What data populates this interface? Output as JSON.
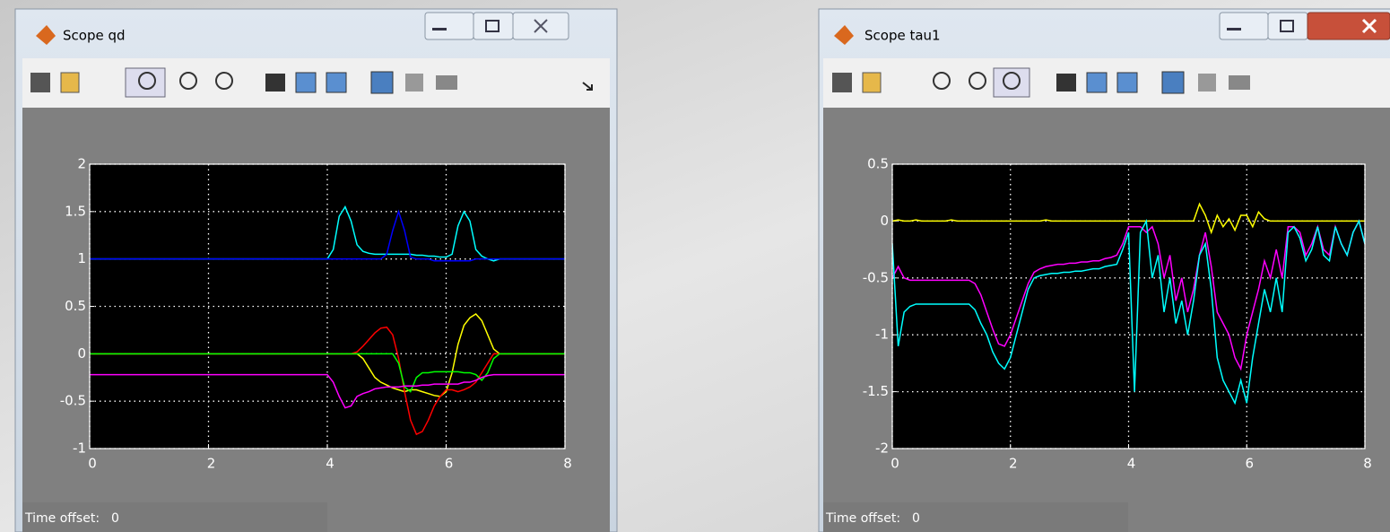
{
  "windows": [
    {
      "title": "Scope qd",
      "time_offset_label": "Time offset:",
      "time_offset": 0
    },
    {
      "title": "Scope tau1",
      "time_offset_label": "Time offset:",
      "time_offset": 0
    }
  ],
  "chart_data": [
    {
      "type": "line",
      "x": [
        0,
        0.5,
        1,
        1.5,
        2,
        2.5,
        3,
        3.5,
        4,
        4.1,
        4.2,
        4.3,
        4.4,
        4.5,
        4.6,
        4.7,
        4.8,
        4.9,
        5,
        5.1,
        5.2,
        5.3,
        5.4,
        5.5,
        5.6,
        5.7,
        5.8,
        5.9,
        6,
        6.1,
        6.2,
        6.3,
        6.4,
        6.5,
        6.6,
        6.7,
        6.8,
        6.9,
        7,
        7.5,
        8
      ],
      "series": [
        {
          "color": "#00ffff",
          "values": [
            1,
            1,
            1,
            1,
            1,
            1,
            1,
            1,
            1,
            1.1,
            1.45,
            1.55,
            1.4,
            1.15,
            1.08,
            1.06,
            1.05,
            1.05,
            1.05,
            1.05,
            1.05,
            1.05,
            1.05,
            1.04,
            1.04,
            1.03,
            1.03,
            1.02,
            1.02,
            1.05,
            1.35,
            1.5,
            1.4,
            1.1,
            1.03,
            1.0,
            0.98,
            1,
            1,
            1,
            1
          ]
        },
        {
          "color": "#0000ff",
          "values": [
            1,
            1,
            1,
            1,
            1,
            1,
            1,
            1,
            1,
            1,
            1,
            1,
            1,
            1,
            1,
            1,
            1,
            1,
            1.05,
            1.3,
            1.5,
            1.3,
            1.02,
            1,
            1,
            1,
            0.98,
            0.98,
            0.98,
            0.98,
            0.98,
            0.98,
            0.98,
            1,
            1,
            1,
            1,
            1,
            1,
            1,
            1
          ]
        },
        {
          "color": "#ffff00",
          "values": [
            0,
            0,
            0,
            0,
            0,
            0,
            0,
            0,
            0,
            0,
            0,
            0,
            0,
            0,
            -0.05,
            -0.15,
            -0.25,
            -0.3,
            -0.33,
            -0.36,
            -0.38,
            -0.4,
            -0.38,
            -0.38,
            -0.4,
            -0.42,
            -0.44,
            -0.45,
            -0.4,
            -0.2,
            0.1,
            0.3,
            0.38,
            0.42,
            0.35,
            0.2,
            0.05,
            0,
            0,
            0,
            0
          ]
        },
        {
          "color": "#ff0000",
          "values": [
            0,
            0,
            0,
            0,
            0,
            0,
            0,
            0,
            0,
            0,
            0,
            0,
            0,
            0.02,
            0.08,
            0.15,
            0.22,
            0.27,
            0.28,
            0.2,
            -0.05,
            -0.4,
            -0.7,
            -0.85,
            -0.82,
            -0.7,
            -0.55,
            -0.45,
            -0.38,
            -0.38,
            -0.4,
            -0.38,
            -0.35,
            -0.3,
            -0.2,
            -0.1,
            0,
            0,
            0,
            0,
            0
          ]
        },
        {
          "color": "#00ff00",
          "values": [
            0,
            0,
            0,
            0,
            0,
            0,
            0,
            0,
            0,
            0,
            0,
            0,
            0,
            0,
            0,
            0,
            0,
            0,
            0,
            0,
            -0.1,
            -0.35,
            -0.4,
            -0.25,
            -0.2,
            -0.2,
            -0.19,
            -0.19,
            -0.19,
            -0.19,
            -0.19,
            -0.2,
            -0.2,
            -0.22,
            -0.28,
            -0.2,
            -0.05,
            0,
            0,
            0,
            0
          ]
        },
        {
          "color": "#ff00ff",
          "values": [
            -0.22,
            -0.22,
            -0.22,
            -0.22,
            -0.22,
            -0.22,
            -0.22,
            -0.22,
            -0.22,
            -0.3,
            -0.45,
            -0.57,
            -0.55,
            -0.45,
            -0.42,
            -0.4,
            -0.37,
            -0.36,
            -0.35,
            -0.35,
            -0.35,
            -0.34,
            -0.34,
            -0.34,
            -0.33,
            -0.33,
            -0.32,
            -0.32,
            -0.32,
            -0.32,
            -0.32,
            -0.3,
            -0.3,
            -0.28,
            -0.25,
            -0.23,
            -0.22,
            -0.22,
            -0.22,
            -0.22,
            -0.22
          ]
        }
      ],
      "xlim": [
        0,
        8
      ],
      "ylim": [
        -1,
        2
      ],
      "xticks": [
        0,
        2,
        4,
        6,
        8
      ],
      "yticks": [
        -1,
        -0.5,
        0,
        0.5,
        1,
        1.5,
        2
      ],
      "grid": true
    },
    {
      "type": "line",
      "x": [
        0,
        0.1,
        0.2,
        0.3,
        0.4,
        0.5,
        0.6,
        0.7,
        0.8,
        0.9,
        1,
        1.1,
        1.2,
        1.3,
        1.4,
        1.5,
        1.6,
        1.7,
        1.8,
        1.9,
        2,
        2.1,
        2.2,
        2.3,
        2.4,
        2.5,
        2.6,
        2.7,
        2.8,
        2.9,
        3,
        3.1,
        3.2,
        3.3,
        3.4,
        3.5,
        3.6,
        3.7,
        3.8,
        3.9,
        4,
        4.1,
        4.2,
        4.3,
        4.4,
        4.5,
        4.6,
        4.7,
        4.8,
        4.9,
        5,
        5.1,
        5.2,
        5.3,
        5.4,
        5.5,
        5.6,
        5.7,
        5.8,
        5.9,
        6,
        6.1,
        6.2,
        6.3,
        6.4,
        6.5,
        6.6,
        6.7,
        6.8,
        6.9,
        7,
        7.1,
        7.2,
        7.3,
        7.4,
        7.5,
        7.6,
        7.7,
        7.8,
        7.9,
        8
      ],
      "series": [
        {
          "color": "#ffff00",
          "values": [
            0,
            0.01,
            0,
            0,
            0.01,
            0,
            0,
            0,
            0,
            0,
            0.01,
            0,
            0,
            0,
            0,
            0,
            0,
            0,
            0,
            0,
            0,
            0,
            0,
            0,
            0,
            0,
            0.01,
            0,
            0,
            0,
            0,
            0,
            0,
            0,
            0,
            0,
            0,
            0,
            0,
            0,
            0,
            0,
            0,
            0,
            0,
            0,
            0,
            0,
            0,
            0,
            0,
            0,
            0.15,
            0.05,
            -0.1,
            0.05,
            -0.05,
            0.02,
            -0.08,
            0.05,
            0.05,
            -0.05,
            0.08,
            0.02,
            0,
            0,
            0,
            0,
            0,
            0,
            0,
            0,
            0,
            0,
            0,
            0,
            0,
            0,
            0,
            0,
            0
          ]
        },
        {
          "color": "#ff00ff",
          "values": [
            -0.5,
            -0.4,
            -0.5,
            -0.52,
            -0.52,
            -0.52,
            -0.52,
            -0.52,
            -0.52,
            -0.52,
            -0.52,
            -0.52,
            -0.52,
            -0.52,
            -0.55,
            -0.65,
            -0.8,
            -0.95,
            -1.08,
            -1.1,
            -1.0,
            -0.85,
            -0.7,
            -0.55,
            -0.45,
            -0.42,
            -0.4,
            -0.39,
            -0.38,
            -0.38,
            -0.37,
            -0.37,
            -0.36,
            -0.36,
            -0.35,
            -0.35,
            -0.33,
            -0.32,
            -0.3,
            -0.2,
            -0.05,
            -0.05,
            -0.05,
            -0.1,
            -0.05,
            -0.2,
            -0.5,
            -0.3,
            -0.7,
            -0.5,
            -0.8,
            -0.6,
            -0.3,
            -0.1,
            -0.4,
            -0.8,
            -0.9,
            -1.0,
            -1.2,
            -1.3,
            -1.0,
            -0.8,
            -0.6,
            -0.35,
            -0.5,
            -0.25,
            -0.5,
            -0.05,
            -0.05,
            -0.1,
            -0.3,
            -0.2,
            -0.05,
            -0.25,
            -0.3,
            -0.05,
            -0.2,
            -0.3,
            -0.1,
            0,
            -0.2
          ]
        },
        {
          "color": "#00ffff",
          "values": [
            -0.2,
            -1.1,
            -0.8,
            -0.75,
            -0.73,
            -0.73,
            -0.73,
            -0.73,
            -0.73,
            -0.73,
            -0.73,
            -0.73,
            -0.73,
            -0.73,
            -0.78,
            -0.9,
            -1.0,
            -1.15,
            -1.25,
            -1.3,
            -1.2,
            -1.0,
            -0.8,
            -0.6,
            -0.5,
            -0.48,
            -0.47,
            -0.46,
            -0.46,
            -0.45,
            -0.45,
            -0.44,
            -0.44,
            -0.43,
            -0.42,
            -0.42,
            -0.4,
            -0.39,
            -0.38,
            -0.25,
            -0.1,
            -1.5,
            -0.1,
            0,
            -0.5,
            -0.3,
            -0.8,
            -0.5,
            -0.9,
            -0.7,
            -1.0,
            -0.7,
            -0.3,
            -0.2,
            -0.6,
            -1.2,
            -1.4,
            -1.5,
            -1.6,
            -1.4,
            -1.6,
            -1.2,
            -0.9,
            -0.6,
            -0.8,
            -0.5,
            -0.8,
            -0.1,
            -0.05,
            -0.15,
            -0.35,
            -0.25,
            -0.05,
            -0.3,
            -0.35,
            -0.05,
            -0.2,
            -0.3,
            -0.1,
            0,
            -0.2
          ]
        }
      ],
      "xlim": [
        0,
        8
      ],
      "ylim": [
        -2,
        0.5
      ],
      "xticks": [
        0,
        2,
        4,
        6,
        8
      ],
      "yticks": [
        -2,
        -1.5,
        -1,
        -0.5,
        0,
        0.5
      ],
      "grid": true
    }
  ]
}
